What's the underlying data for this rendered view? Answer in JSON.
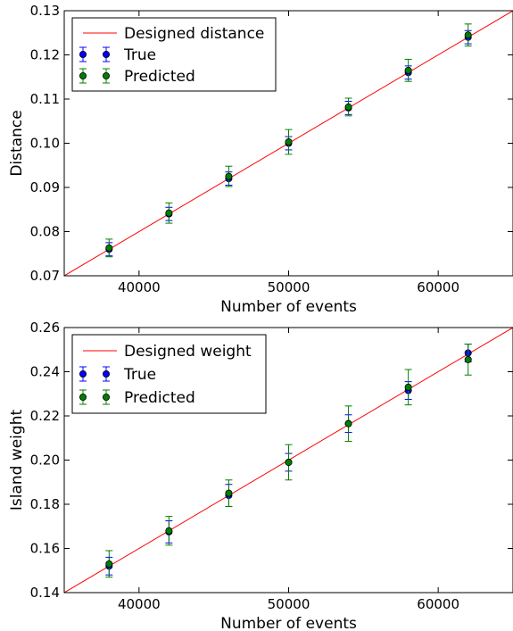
{
  "chart_data": [
    {
      "type": "scatter",
      "title": "",
      "xlabel": "Number of events",
      "ylabel": "Distance",
      "xlim": [
        35000,
        65000
      ],
      "ylim": [
        0.07,
        0.13
      ],
      "x_ticks": [
        40000,
        50000,
        60000
      ],
      "y_ticks": [
        0.07,
        0.08,
        0.09,
        0.1,
        0.11,
        0.12,
        0.13
      ],
      "y_tick_labels": [
        "0.07",
        "0.08",
        "0.09",
        "0.10",
        "0.11",
        "0.12",
        "0.13"
      ],
      "x_tick_labels": [
        "40000",
        "50000",
        "60000"
      ],
      "grid": false,
      "legend_position": "top-left",
      "design_line": {
        "name": "Designed distance",
        "color": "#ff0000",
        "x": [
          35000,
          65000
        ],
        "y": [
          0.07,
          0.13
        ]
      },
      "series": [
        {
          "name": "True",
          "color": "#0000ff",
          "x": [
            38000,
            42000,
            46000,
            50000,
            54000,
            58000,
            62000
          ],
          "y": [
            0.076,
            0.084,
            0.092,
            0.1,
            0.108,
            0.116,
            0.124
          ],
          "err": [
            0.0015,
            0.0015,
            0.0015,
            0.0015,
            0.0015,
            0.0015,
            0.0015
          ]
        },
        {
          "name": "Predicted",
          "color": "#008000",
          "x": [
            38000,
            42000,
            46000,
            50000,
            54000,
            58000,
            62000
          ],
          "y": [
            0.0763,
            0.0842,
            0.0925,
            0.1003,
            0.1082,
            0.1165,
            0.1245
          ],
          "err": [
            0.002,
            0.0023,
            0.0023,
            0.0028,
            0.002,
            0.0025,
            0.0025
          ]
        }
      ]
    },
    {
      "type": "scatter",
      "title": "",
      "xlabel": "Number of events",
      "ylabel": "Island weight",
      "xlim": [
        35000,
        65000
      ],
      "ylim": [
        0.14,
        0.26
      ],
      "x_ticks": [
        40000,
        50000,
        60000
      ],
      "y_ticks": [
        0.14,
        0.16,
        0.18,
        0.2,
        0.22,
        0.24,
        0.26
      ],
      "y_tick_labels": [
        "0.14",
        "0.16",
        "0.18",
        "0.20",
        "0.22",
        "0.24",
        "0.26"
      ],
      "x_tick_labels": [
        "40000",
        "50000",
        "60000"
      ],
      "grid": false,
      "legend_position": "top-left",
      "design_line": {
        "name": "Designed weight",
        "color": "#ff0000",
        "x": [
          35000,
          65000
        ],
        "y": [
          0.14,
          0.26
        ]
      },
      "series": [
        {
          "name": "True",
          "color": "#0000ff",
          "x": [
            38000,
            42000,
            46000,
            50000,
            54000,
            58000,
            62000
          ],
          "y": [
            0.152,
            0.1675,
            0.184,
            0.199,
            0.2165,
            0.2315,
            0.2485
          ],
          "err": [
            0.004,
            0.005,
            0.005,
            0.004,
            0.004,
            0.004,
            0.004
          ]
        },
        {
          "name": "Predicted",
          "color": "#008000",
          "x": [
            38000,
            42000,
            46000,
            50000,
            54000,
            58000,
            62000
          ],
          "y": [
            0.153,
            0.168,
            0.185,
            0.199,
            0.2165,
            0.233,
            0.2455
          ],
          "err": [
            0.006,
            0.0065,
            0.006,
            0.008,
            0.008,
            0.008,
            0.007
          ]
        }
      ]
    }
  ]
}
